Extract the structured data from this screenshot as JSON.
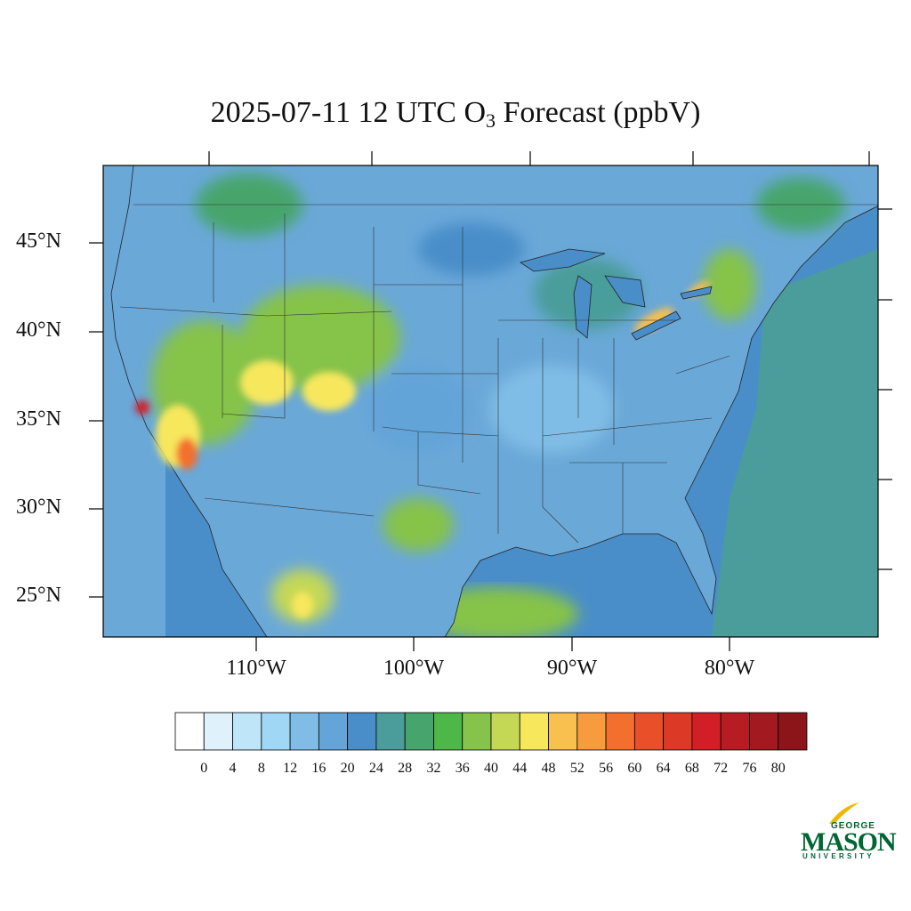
{
  "title": {
    "prefix": "2025-07-11 12 UTC O",
    "subscript": "3",
    "suffix": " Forecast (ppbV)"
  },
  "map": {
    "lat_labels": [
      "45°N",
      "40°N",
      "35°N",
      "30°N",
      "25°N"
    ],
    "lon_labels": [
      "110°W",
      "100°W",
      "90°W",
      "80°W"
    ],
    "ocean_color": "#4a8ec9",
    "land_color": "#6aa8d8"
  },
  "colorbar": {
    "colors": [
      "#ffffff",
      "#dff1fb",
      "#bfe5f8",
      "#9fd7f4",
      "#80bde6",
      "#64a4d8",
      "#4a8ec9",
      "#4a9d9a",
      "#46a56c",
      "#4db748",
      "#86c34a",
      "#c5d856",
      "#f7e75d",
      "#f8c04e",
      "#f69b3e",
      "#f36f2e",
      "#e8502a",
      "#dc3a27",
      "#d21f27",
      "#b71c23",
      "#a21a1f",
      "#8b1519"
    ],
    "labels": [
      "0",
      "4",
      "8",
      "12",
      "16",
      "20",
      "24",
      "28",
      "32",
      "36",
      "40",
      "44",
      "48",
      "52",
      "56",
      "60",
      "64",
      "68",
      "72",
      "76",
      "80"
    ]
  },
  "logo": {
    "george": "GEORGE",
    "mason": "MASON",
    "university": "UNIVERSITY"
  }
}
